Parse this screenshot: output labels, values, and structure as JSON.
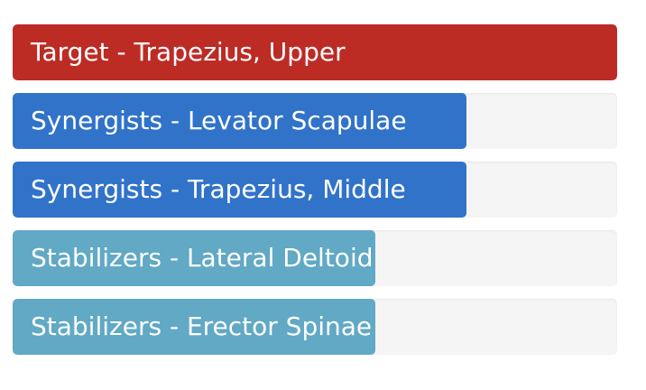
{
  "muscles": [
    {
      "label": "Target - Trapezius, Upper",
      "percent": 100,
      "color": "#bd2b25"
    },
    {
      "label": "Synergists - Levator Scapulae",
      "percent": 75,
      "color": "#3173c9"
    },
    {
      "label": "Synergists - Trapezius, Middle",
      "percent": 75,
      "color": "#3173c9"
    },
    {
      "label": "Stabilizers - Lateral Deltoid",
      "percent": 60,
      "color": "#61a9c4"
    },
    {
      "label": "Stabilizers - Erector Spinae",
      "percent": 60,
      "color": "#61a9c4"
    }
  ]
}
